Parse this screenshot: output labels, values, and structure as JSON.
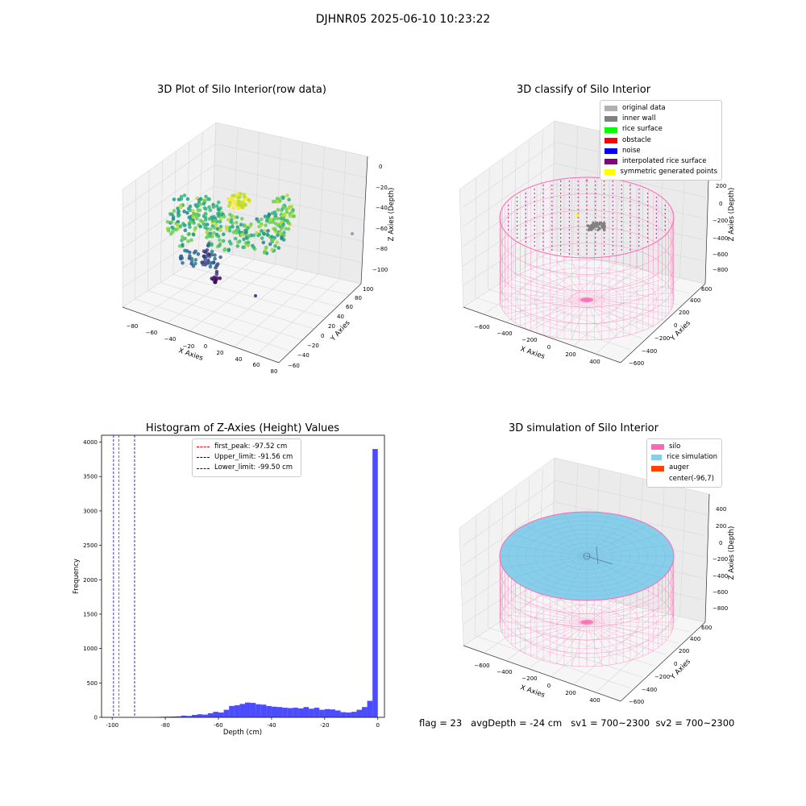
{
  "suptitle": "DJHNR05 2025-06-10 10:23:22",
  "footer": {
    "flag": "flag = 23",
    "avg_depth": "avgDepth = -24 cm",
    "sv1": "sv1 = 700~2300",
    "sv2": "sv2 = 700~2300"
  },
  "chart_data": [
    {
      "type": "scatter",
      "title": "3D Plot of Silo Interior(row data)",
      "xlabel": "X Axies",
      "ylabel": "Y Axies",
      "zlabel": "Z Axies (Depth)",
      "x_ticks": [
        "−80",
        "−60",
        "−40",
        "−20",
        "0",
        "20",
        "40",
        "60",
        "80"
      ],
      "y_ticks": [
        "−60",
        "−40",
        "−20",
        "0",
        "20",
        "40",
        "60",
        "80",
        "100"
      ],
      "z_ticks": [
        "0",
        "−20",
        "−40",
        "−60",
        "−80",
        "−100"
      ],
      "colormap": "viridis"
    },
    {
      "type": "scatter",
      "title": "3D classify of Silo Interior",
      "xlabel": "X Axies",
      "ylabel": "Y Axies",
      "zlabel": "Z Axies (Depth)",
      "x_ticks": [
        "−600",
        "−400",
        "−200",
        "0",
        "200",
        "400"
      ],
      "y_ticks": [
        "−600",
        "−400",
        "−200",
        "0",
        "200",
        "400",
        "600"
      ],
      "z_ticks": [
        "200",
        "0",
        "−200",
        "−400",
        "−600",
        "−800"
      ],
      "legend": {
        "position": "upper-right",
        "entries": [
          {
            "label": "original data",
            "color": "#b0b0b0"
          },
          {
            "label": "inner wall",
            "color": "#808080"
          },
          {
            "label": "rice surface",
            "color": "#00ff00"
          },
          {
            "label": "obstacle",
            "color": "#ff0000"
          },
          {
            "label": "noise",
            "color": "#0000ff"
          },
          {
            "label": "interpolated rice surface",
            "color": "#800080"
          },
          {
            "label": "symmetric generated points",
            "color": "#ffff00"
          }
        ]
      }
    },
    {
      "type": "bar",
      "title": "Histogram of Z-Axies (Height) Values",
      "xlabel": "Depth (cm)",
      "ylabel": "Frequency",
      "xlim": [
        -104,
        2.5
      ],
      "ylim": [
        0,
        4100
      ],
      "x_ticks": [
        -100,
        -80,
        -60,
        -40,
        -20,
        0
      ],
      "y_ticks": [
        0,
        500,
        1000,
        1500,
        2000,
        2500,
        3000,
        3500,
        4000
      ],
      "bar_color": "#0000ff",
      "bins": [
        {
          "x0": -84,
          "x1": -82,
          "y": 5
        },
        {
          "x0": -82,
          "x1": -80,
          "y": 8
        },
        {
          "x0": -80,
          "x1": -78,
          "y": 10
        },
        {
          "x0": -78,
          "x1": -76,
          "y": 12
        },
        {
          "x0": -76,
          "x1": -74,
          "y": 15
        },
        {
          "x0": -74,
          "x1": -72,
          "y": 25
        },
        {
          "x0": -72,
          "x1": -70,
          "y": 20
        },
        {
          "x0": -70,
          "x1": -68,
          "y": 35
        },
        {
          "x0": -68,
          "x1": -66,
          "y": 45
        },
        {
          "x0": -66,
          "x1": -64,
          "y": 40
        },
        {
          "x0": -64,
          "x1": -62,
          "y": 60
        },
        {
          "x0": -62,
          "x1": -60,
          "y": 80
        },
        {
          "x0": -60,
          "x1": -58,
          "y": 70
        },
        {
          "x0": -58,
          "x1": -56,
          "y": 110
        },
        {
          "x0": -56,
          "x1": -54,
          "y": 165
        },
        {
          "x0": -54,
          "x1": -52,
          "y": 175
        },
        {
          "x0": -52,
          "x1": -50,
          "y": 195
        },
        {
          "x0": -50,
          "x1": -48,
          "y": 215
        },
        {
          "x0": -48,
          "x1": -46,
          "y": 210
        },
        {
          "x0": -46,
          "x1": -44,
          "y": 190
        },
        {
          "x0": -44,
          "x1": -42,
          "y": 185
        },
        {
          "x0": -42,
          "x1": -40,
          "y": 165
        },
        {
          "x0": -40,
          "x1": -38,
          "y": 155
        },
        {
          "x0": -38,
          "x1": -36,
          "y": 150
        },
        {
          "x0": -36,
          "x1": -34,
          "y": 140
        },
        {
          "x0": -34,
          "x1": -32,
          "y": 135
        },
        {
          "x0": -32,
          "x1": -30,
          "y": 140
        },
        {
          "x0": -30,
          "x1": -28,
          "y": 130
        },
        {
          "x0": -28,
          "x1": -26,
          "y": 150
        },
        {
          "x0": -26,
          "x1": -24,
          "y": 125
        },
        {
          "x0": -24,
          "x1": -22,
          "y": 140
        },
        {
          "x0": -22,
          "x1": -20,
          "y": 110
        },
        {
          "x0": -20,
          "x1": -18,
          "y": 120
        },
        {
          "x0": -18,
          "x1": -16,
          "y": 115
        },
        {
          "x0": -16,
          "x1": -14,
          "y": 100
        },
        {
          "x0": -14,
          "x1": -12,
          "y": 75
        },
        {
          "x0": -12,
          "x1": -10,
          "y": 70
        },
        {
          "x0": -10,
          "x1": -8,
          "y": 80
        },
        {
          "x0": -8,
          "x1": -6,
          "y": 110
        },
        {
          "x0": -6,
          "x1": -4,
          "y": 150
        },
        {
          "x0": -4,
          "x1": -2,
          "y": 240
        },
        {
          "x0": -2,
          "x1": 0,
          "y": 3900
        }
      ],
      "vlines": [
        {
          "key": "first_peak",
          "x": -97.52,
          "color": "#ff0000",
          "label": "first_peak: -97.52 cm"
        },
        {
          "key": "upper_limit",
          "x": -91.56,
          "color": "#00008b",
          "label": "Upper_limit: -91.56 cm"
        },
        {
          "key": "lower_limit",
          "x": -99.5,
          "color": "#0000ff",
          "label": "Lower_limit: -99.50 cm"
        }
      ]
    },
    {
      "type": "scatter",
      "title": "3D simulation of Silo Interior",
      "xlabel": "X Axies",
      "ylabel": "Y Axies",
      "zlabel": "Z Axies (Depth)",
      "x_ticks": [
        "−600",
        "−400",
        "−200",
        "0",
        "200",
        "400"
      ],
      "y_ticks": [
        "−600",
        "−400",
        "−200",
        "0",
        "200",
        "400",
        "600"
      ],
      "z_ticks": [
        "400",
        "200",
        "0",
        "−200",
        "−400",
        "−600",
        "−800"
      ],
      "legend": {
        "position": "upper-right",
        "entries": [
          {
            "label": "silo",
            "color": "#ff69b4"
          },
          {
            "label": "rice simulation",
            "color": "#87ceeb"
          },
          {
            "label": "auger",
            "color": "#ff4500"
          },
          {
            "label": "center(-96,7)",
            "color": ""
          }
        ]
      }
    }
  ]
}
